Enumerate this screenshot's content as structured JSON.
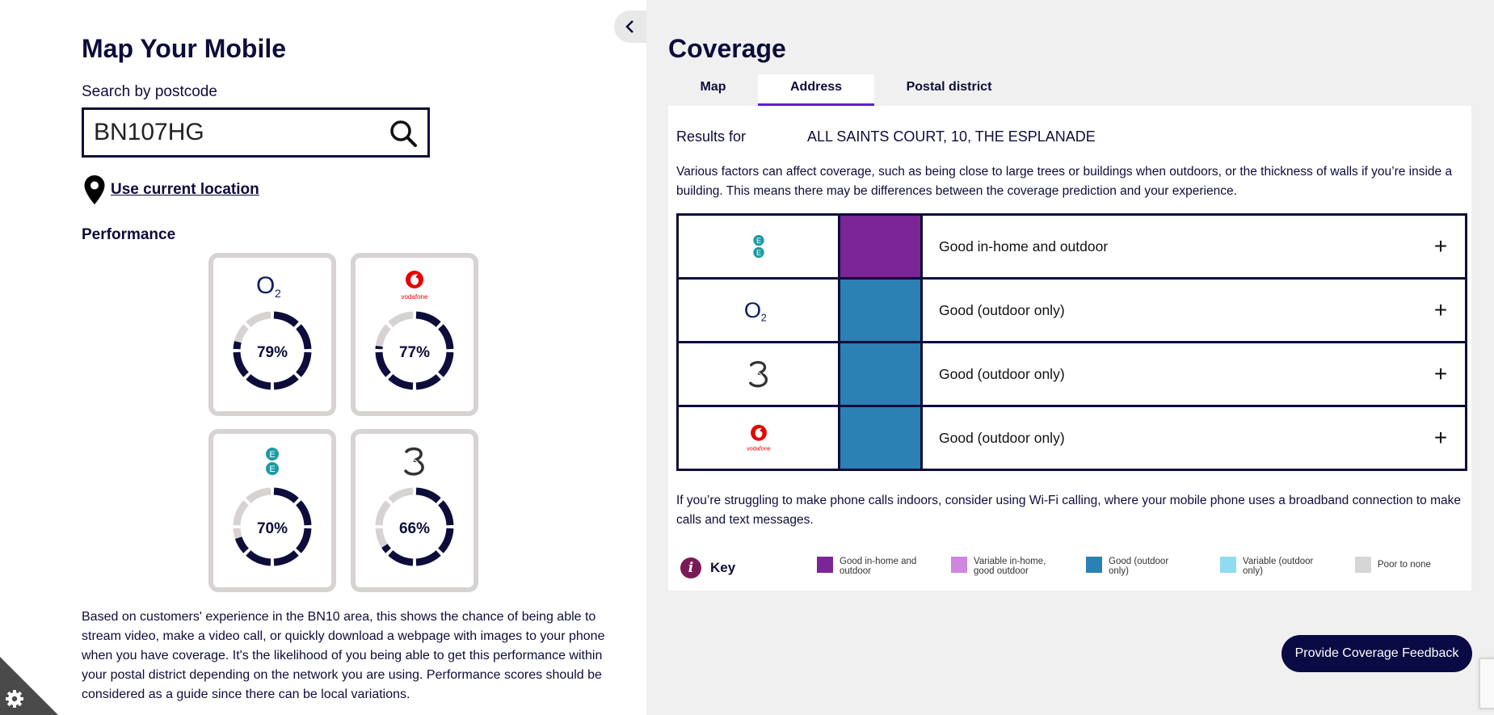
{
  "left": {
    "title": "Map Your Mobile",
    "search": {
      "label": "Search by postcode",
      "value": "BN107HG"
    },
    "location_link": "Use current location",
    "performance_heading": "Performance",
    "cards": [
      {
        "operator": "O2",
        "logo_icon": "o2-logo-icon",
        "percent": 79,
        "label": "79%"
      },
      {
        "operator": "vodafone",
        "logo_icon": "vodafone-logo-icon",
        "percent": 77,
        "label": "77%"
      },
      {
        "operator": "EE",
        "logo_icon": "ee-logo-icon",
        "percent": 70,
        "label": "70%"
      },
      {
        "operator": "Three",
        "logo_icon": "three-logo-icon",
        "percent": 66,
        "label": "66%"
      }
    ],
    "performance_text": "Based on customers' experience in the BN10 area, this shows the chance of being able to stream video, make a video call, or quickly download a webpage with images to your phone when you have coverage. It's the likelihood of you being able to get this performance within your postal district depending on the network you are using. Performance scores should be considered as a guide since there can be local variations."
  },
  "right": {
    "title": "Coverage",
    "tabs": [
      {
        "label": "Map",
        "active": false
      },
      {
        "label": "Address",
        "active": true
      },
      {
        "label": "Postal district",
        "active": false
      }
    ],
    "results_label": "Results for",
    "results_value": "ALL SAINTS COURT, 10, THE ESPLANADE",
    "info_text": "Various factors can affect coverage, such as being close to large trees or buildings when outdoors, or the thickness of walls if you’re inside a building. This means there may be differences between the coverage prediction and your experience.",
    "rows": [
      {
        "operator": "EE",
        "logo_icon": "ee-logo-icon",
        "color": "#7b2596",
        "text": "Good in-home and outdoor"
      },
      {
        "operator": "O2",
        "logo_icon": "o2-logo-icon",
        "color": "#2b80b4",
        "text": "Good (outdoor only)"
      },
      {
        "operator": "Three",
        "logo_icon": "three-logo-icon",
        "color": "#2b80b4",
        "text": "Good (outdoor only)"
      },
      {
        "operator": "vodafone",
        "logo_icon": "vodafone-logo-icon",
        "color": "#2b80b4",
        "text": "Good (outdoor only)"
      }
    ],
    "expand_symbol": "+",
    "wifi_text": "If you’re struggling to make phone calls indoors, consider using Wi-Fi calling, where your mobile phone uses a broadband connection to make calls and text messages.",
    "key": {
      "title": "Key",
      "items": [
        {
          "label": "Good in-home and outdoor",
          "color": "#7b2596"
        },
        {
          "label": "Variable in-home, good outdoor",
          "color": "#cf86e0"
        },
        {
          "label": "Good (outdoor only)",
          "color": "#2b80b4"
        },
        {
          "label": "Variable (outdoor only)",
          "color": "#8fdcf2"
        },
        {
          "label": "Poor to none",
          "color": "#d6d6d6"
        }
      ]
    },
    "feedback_button": "Provide Coverage Feedback"
  },
  "colors": {
    "navy": "#0d0d3b",
    "accent_tab": "#5c1ed6",
    "card_border": "#d8d3d3",
    "ring_track": "#d8d3d3"
  }
}
